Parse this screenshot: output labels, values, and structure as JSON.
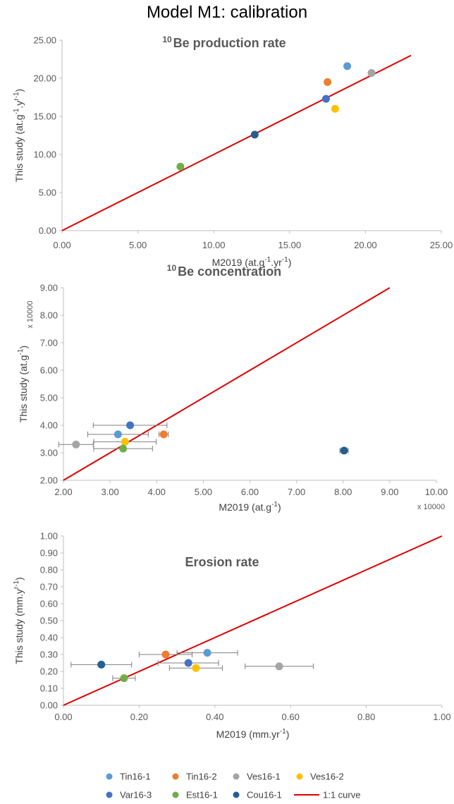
{
  "title": "Model M1: calibration",
  "legend": [
    {
      "name": "Tin16-1",
      "color": "#5B9BD5",
      "kind": "marker"
    },
    {
      "name": "Tin16-2",
      "color": "#ED7D31",
      "kind": "marker"
    },
    {
      "name": "Ves16-1",
      "color": "#A5A5A5",
      "kind": "marker"
    },
    {
      "name": "Ves16-2",
      "color": "#FFC000",
      "kind": "marker"
    },
    {
      "name": "Var16-3",
      "color": "#4472C4",
      "kind": "marker"
    },
    {
      "name": "Est16-1",
      "color": "#70AD47",
      "kind": "marker"
    },
    {
      "name": "Cou16-1",
      "color": "#255E91",
      "kind": "marker"
    },
    {
      "name": "1:1 curve",
      "color": "#E00000",
      "kind": "line"
    }
  ],
  "chart_data": [
    {
      "type": "scatter",
      "title_sup": "10",
      "title_main": "Be production rate",
      "xlabel_main": "M2019 (at.g",
      "xlabel_sup1": "-1",
      "xlabel_mid": ".yr",
      "xlabel_sup2": "-1",
      "xlabel_end": ")",
      "ylabel_main": "This study (at.g",
      "ylabel_sup1": "-1",
      "ylabel_mid": ".y",
      "ylabel_sup2": "r-1",
      "ylabel_end": ")",
      "xlim": [
        0,
        25
      ],
      "ylim": [
        0,
        25
      ],
      "xticks": [
        "0.00",
        "5.00",
        "10.00",
        "15.00",
        "20.00",
        "25.00"
      ],
      "yticks": [
        "0.00",
        "5.00",
        "10.00",
        "15.00",
        "20.00",
        "25.00"
      ],
      "one_to_one": [
        0,
        23
      ],
      "points": [
        {
          "name": "Tin16-1",
          "x": 18.8,
          "y": 21.6
        },
        {
          "name": "Tin16-2",
          "x": 17.5,
          "y": 19.5
        },
        {
          "name": "Ves16-1",
          "x": 20.4,
          "y": 20.7
        },
        {
          "name": "Ves16-2",
          "x": 18.0,
          "y": 16.0
        },
        {
          "name": "Var16-3",
          "x": 17.4,
          "y": 17.3
        },
        {
          "name": "Est16-1",
          "x": 7.8,
          "y": 8.4
        },
        {
          "name": "Cou16-1",
          "x": 12.7,
          "y": 12.6
        }
      ]
    },
    {
      "type": "scatter",
      "title_sup": "10",
      "title_main": "Be concentration",
      "xlabel_main": "M2019 (at.g",
      "xlabel_sup1": "-1",
      "xlabel_end": ")",
      "ylabel_main": "This study (at.g",
      "ylabel_sup1": "-1",
      "ylabel_end": ")",
      "x_multiplier": "x 10000",
      "y_multiplier": "x 10000",
      "xlim": [
        2,
        10
      ],
      "ylim": [
        2,
        9
      ],
      "xticks": [
        "2.00",
        "3.00",
        "4.00",
        "5.00",
        "6.00",
        "7.00",
        "8.00",
        "9.00",
        "10.00"
      ],
      "yticks": [
        "2.00",
        "3.00",
        "4.00",
        "5.00",
        "6.00",
        "7.00",
        "8.00",
        "9.00"
      ],
      "one_to_one": [
        2,
        9
      ],
      "points": [
        {
          "name": "Tin16-1",
          "x": 3.17,
          "y": 3.67,
          "xerr": [
            2.52,
            3.82
          ]
        },
        {
          "name": "Tin16-2",
          "x": 4.15,
          "y": 3.67,
          "xerr": [
            4.05,
            4.25
          ]
        },
        {
          "name": "Ves16-1",
          "x": 2.27,
          "y": 3.3,
          "xerr": [
            1.9,
            2.64
          ]
        },
        {
          "name": "Ves16-2",
          "x": 3.32,
          "y": 3.4,
          "xerr": [
            2.65,
            3.99
          ]
        },
        {
          "name": "Var16-3",
          "x": 3.43,
          "y": 4.0,
          "xerr": [
            2.64,
            4.22
          ]
        },
        {
          "name": "Est16-1",
          "x": 3.28,
          "y": 3.15,
          "xerr": [
            2.65,
            3.91
          ]
        },
        {
          "name": "Cou16-1",
          "x": 8.02,
          "y": 3.08,
          "xerr": [
            7.93,
            8.11
          ]
        }
      ]
    },
    {
      "type": "scatter",
      "title_main": "Erosion rate",
      "xlabel_main": "M2019 (mm.yr",
      "xlabel_sup1": "-1",
      "xlabel_end": ")",
      "ylabel_main": "This study (mm.y",
      "ylabel_sup1": "r-1",
      "ylabel_end": ")",
      "xlim": [
        0,
        1
      ],
      "ylim": [
        0,
        1
      ],
      "xticks": [
        "0.00",
        "0.20",
        "0.40",
        "0.60",
        "0.80",
        "1.00"
      ],
      "yticks": [
        "0.00",
        "0.10",
        "0.20",
        "0.30",
        "0.40",
        "0.50",
        "0.60",
        "0.70",
        "0.80",
        "0.90",
        "1.00"
      ],
      "one_to_one": [
        0,
        1
      ],
      "points": [
        {
          "name": "Tin16-1",
          "x": 0.38,
          "y": 0.31,
          "xerr": [
            0.3,
            0.46
          ]
        },
        {
          "name": "Tin16-2",
          "x": 0.27,
          "y": 0.3,
          "xerr": [
            0.2,
            0.34
          ]
        },
        {
          "name": "Ves16-1",
          "x": 0.57,
          "y": 0.23,
          "xerr": [
            0.48,
            0.66
          ]
        },
        {
          "name": "Ves16-2",
          "x": 0.35,
          "y": 0.22,
          "xerr": [
            0.28,
            0.42
          ]
        },
        {
          "name": "Var16-3",
          "x": 0.33,
          "y": 0.25,
          "xerr": [
            0.25,
            0.41
          ]
        },
        {
          "name": "Est16-1",
          "x": 0.16,
          "y": 0.16,
          "xerr": [
            0.13,
            0.19
          ]
        },
        {
          "name": "Cou16-1",
          "x": 0.1,
          "y": 0.24,
          "xerr": [
            0.02,
            0.18
          ]
        }
      ]
    }
  ]
}
